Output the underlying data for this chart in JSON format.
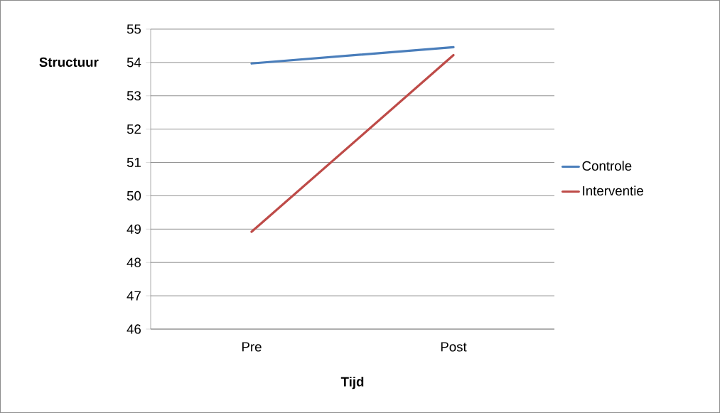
{
  "chart_data": {
    "type": "line",
    "xlabel": "Tijd",
    "ylabel": "Structuur",
    "categories": [
      "Pre",
      "Post"
    ],
    "series": [
      {
        "name": "Controle",
        "color": "#4a7ebb",
        "values": [
          53.97,
          54.46
        ]
      },
      {
        "name": "Interventie",
        "color": "#be4b48",
        "values": [
          48.92,
          54.22
        ]
      }
    ],
    "ylim": [
      46,
      55
    ],
    "yticks": [
      46,
      47,
      48,
      49,
      50,
      51,
      52,
      53,
      54,
      55
    ],
    "grid": "y",
    "legend": "right",
    "marker": "none",
    "line_style": "solid"
  }
}
